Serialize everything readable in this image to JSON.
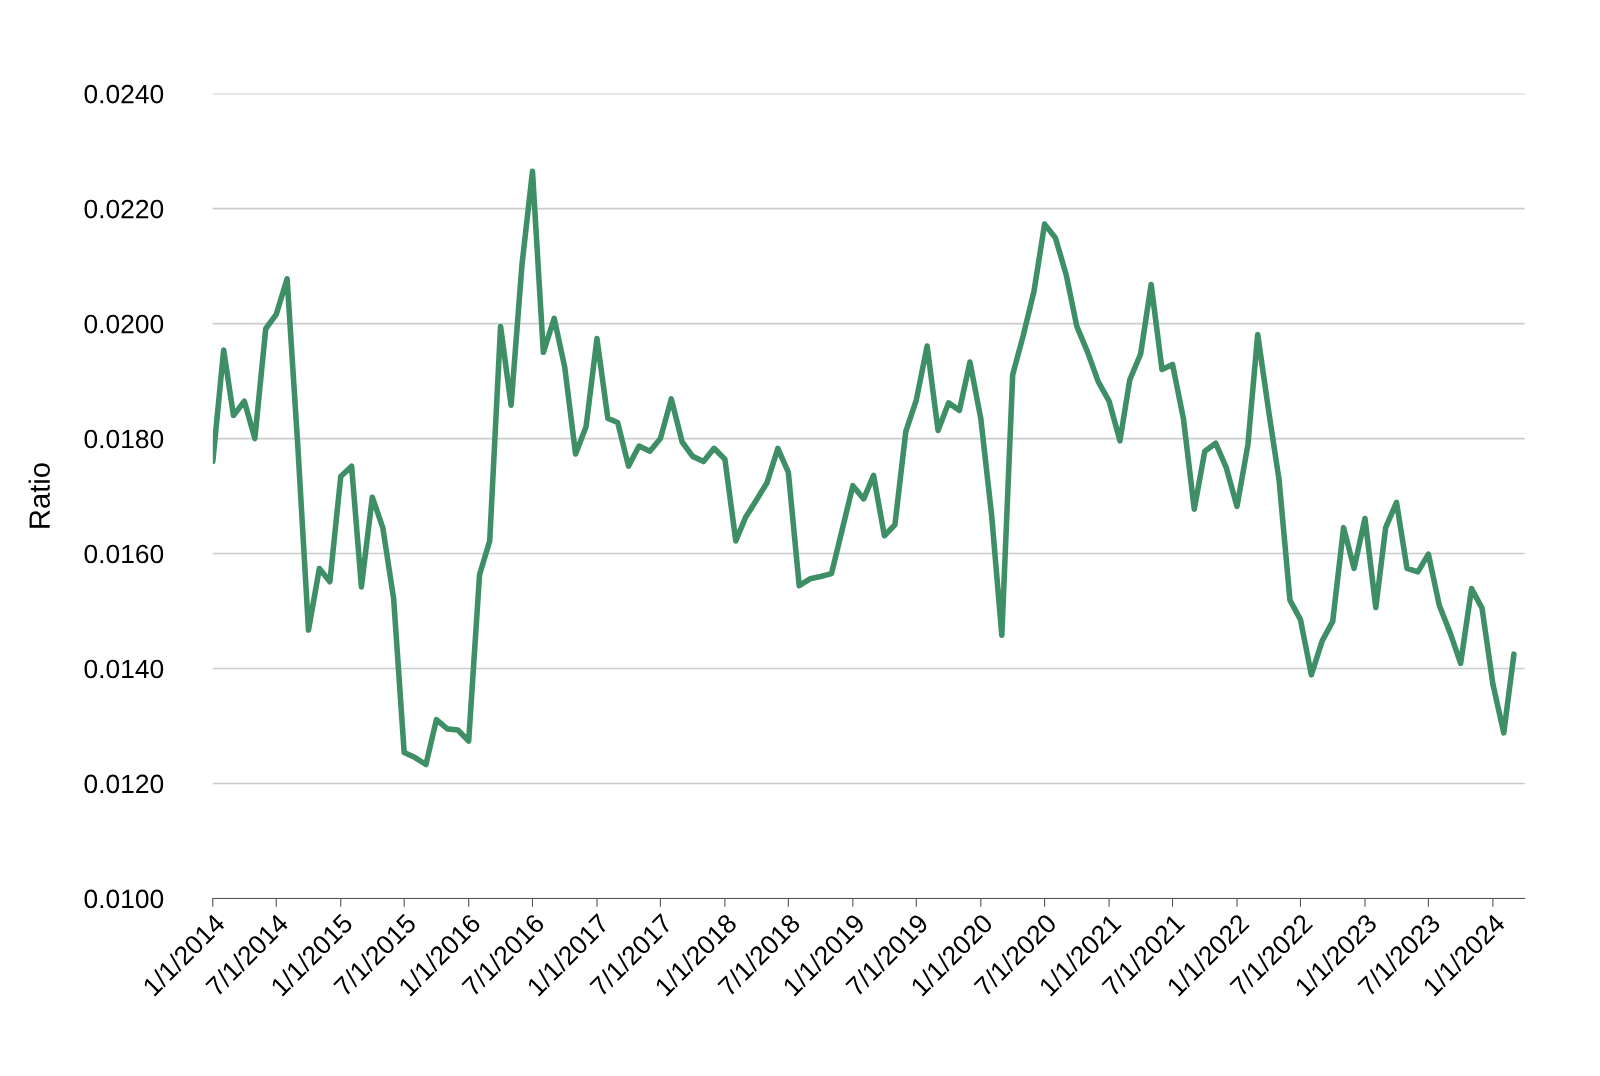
{
  "chart_data": {
    "type": "line",
    "ylabel": "Ratio",
    "grid": "y",
    "marker": "none",
    "line_style": "solid",
    "ylim": [
      0.01,
      0.024
    ],
    "yticks": [
      {
        "value": 0.01,
        "label": "0.0100"
      },
      {
        "value": 0.012,
        "label": "0.0120"
      },
      {
        "value": 0.014,
        "label": "0.0140"
      },
      {
        "value": 0.016,
        "label": "0.0160"
      },
      {
        "value": 0.018,
        "label": "0.0180"
      },
      {
        "value": 0.02,
        "label": "0.0200"
      },
      {
        "value": 0.022,
        "label": "0.0220"
      },
      {
        "value": 0.024,
        "label": "0.0240"
      }
    ],
    "xlim": [
      "2014-01-01",
      "2024-04-01"
    ],
    "xticks": [
      {
        "value": "2014-01-01",
        "label": "1/1/2014"
      },
      {
        "value": "2014-07-01",
        "label": "7/1/2014"
      },
      {
        "value": "2015-01-01",
        "label": "1/1/2015"
      },
      {
        "value": "2015-07-01",
        "label": "7/1/2015"
      },
      {
        "value": "2016-01-01",
        "label": "1/1/2016"
      },
      {
        "value": "2016-07-01",
        "label": "7/1/2016"
      },
      {
        "value": "2017-01-01",
        "label": "1/1/2017"
      },
      {
        "value": "2017-07-01",
        "label": "7/1/2017"
      },
      {
        "value": "2018-01-01",
        "label": "1/1/2018"
      },
      {
        "value": "2018-07-01",
        "label": "7/1/2018"
      },
      {
        "value": "2019-01-01",
        "label": "1/1/2019"
      },
      {
        "value": "2019-07-01",
        "label": "7/1/2019"
      },
      {
        "value": "2020-01-01",
        "label": "1/1/2020"
      },
      {
        "value": "2020-07-01",
        "label": "7/1/2020"
      },
      {
        "value": "2021-01-01",
        "label": "1/1/2021"
      },
      {
        "value": "2021-07-01",
        "label": "7/1/2021"
      },
      {
        "value": "2022-01-01",
        "label": "1/1/2022"
      },
      {
        "value": "2022-07-01",
        "label": "7/1/2022"
      },
      {
        "value": "2023-01-01",
        "label": "1/1/2023"
      },
      {
        "value": "2023-07-01",
        "label": "7/1/2023"
      },
      {
        "value": "2024-01-01",
        "label": "1/1/2024"
      }
    ],
    "x": [
      "2014-01",
      "2014-02",
      "2014-03",
      "2014-04",
      "2014-05",
      "2014-06",
      "2014-07",
      "2014-08",
      "2014-09",
      "2014-10",
      "2014-11",
      "2014-12",
      "2015-01",
      "2015-02",
      "2015-03",
      "2015-04",
      "2015-05",
      "2015-06",
      "2015-07",
      "2015-08",
      "2015-09",
      "2015-10",
      "2015-11",
      "2015-12",
      "2016-01",
      "2016-02",
      "2016-03",
      "2016-04",
      "2016-05",
      "2016-06",
      "2016-07",
      "2016-08",
      "2016-09",
      "2016-10",
      "2016-11",
      "2016-12",
      "2017-01",
      "2017-02",
      "2017-03",
      "2017-04",
      "2017-05",
      "2017-06",
      "2017-07",
      "2017-08",
      "2017-09",
      "2017-10",
      "2017-11",
      "2017-12",
      "2018-01",
      "2018-02",
      "2018-03",
      "2018-04",
      "2018-05",
      "2018-06",
      "2018-07",
      "2018-08",
      "2018-09",
      "2018-10",
      "2018-11",
      "2018-12",
      "2019-01",
      "2019-02",
      "2019-03",
      "2019-04",
      "2019-05",
      "2019-06",
      "2019-07",
      "2019-08",
      "2019-09",
      "2019-10",
      "2019-11",
      "2019-12",
      "2020-01",
      "2020-02",
      "2020-03",
      "2020-04",
      "2020-05",
      "2020-06",
      "2020-07",
      "2020-08",
      "2020-09",
      "2020-10",
      "2020-11",
      "2020-12",
      "2021-01",
      "2021-02",
      "2021-03",
      "2021-04",
      "2021-05",
      "2021-06",
      "2021-07",
      "2021-08",
      "2021-09",
      "2021-10",
      "2021-11",
      "2021-12",
      "2022-01",
      "2022-02",
      "2022-03",
      "2022-04",
      "2022-05",
      "2022-06",
      "2022-07",
      "2022-08",
      "2022-09",
      "2022-10",
      "2022-11",
      "2022-12",
      "2023-01",
      "2023-02",
      "2023-03",
      "2023-04",
      "2023-05",
      "2023-06",
      "2023-07",
      "2023-08",
      "2023-09",
      "2023-10",
      "2023-11",
      "2023-12",
      "2024-01",
      "2024-02",
      "2024-03"
    ],
    "series": [
      {
        "color": "#3f8f66",
        "values": [
          0.0176,
          0.01954,
          0.0184,
          0.01865,
          0.018,
          0.01991,
          0.02016,
          0.02078,
          0.01782,
          0.01467,
          0.01574,
          0.01551,
          0.01734,
          0.01752,
          0.01542,
          0.01698,
          0.01645,
          0.01521,
          0.01254,
          0.01245,
          0.01233,
          0.01311,
          0.01295,
          0.01293,
          0.01274,
          0.01563,
          0.01622,
          0.01995,
          0.01858,
          0.02102,
          0.02265,
          0.0195,
          0.02009,
          0.01924,
          0.01773,
          0.01821,
          0.01974,
          0.01835,
          0.01828,
          0.01752,
          0.01787,
          0.01778,
          0.018,
          0.01869,
          0.01794,
          0.01769,
          0.0176,
          0.01783,
          0.01764,
          0.01622,
          0.01663,
          0.01693,
          0.01723,
          0.01783,
          0.01741,
          0.01544,
          0.01556,
          0.0156,
          0.01565,
          0.0164,
          0.01718,
          0.01695,
          0.01736,
          0.01631,
          0.0165,
          0.01812,
          0.01867,
          0.01961,
          0.01814,
          0.01862,
          0.01849,
          0.01933,
          0.01835,
          0.01666,
          0.01458,
          0.01911,
          0.01979,
          0.02057,
          0.02173,
          0.02149,
          0.02084,
          0.01995,
          0.0195,
          0.01899,
          0.01865,
          0.01796,
          0.01902,
          0.01947,
          0.02068,
          0.0192,
          0.01929,
          0.01835,
          0.01677,
          0.01778,
          0.01792,
          0.0175,
          0.01682,
          0.01789,
          0.01981,
          0.01849,
          0.01728,
          0.01519,
          0.01485,
          0.01389,
          0.01448,
          0.01482,
          0.01645,
          0.01574,
          0.01661,
          0.01506,
          0.01645,
          0.01689,
          0.01574,
          0.01568,
          0.01599,
          0.0151,
          0.01462,
          0.01409,
          0.01539,
          0.01505,
          0.01373,
          0.01288,
          0.01425
        ]
      }
    ]
  }
}
